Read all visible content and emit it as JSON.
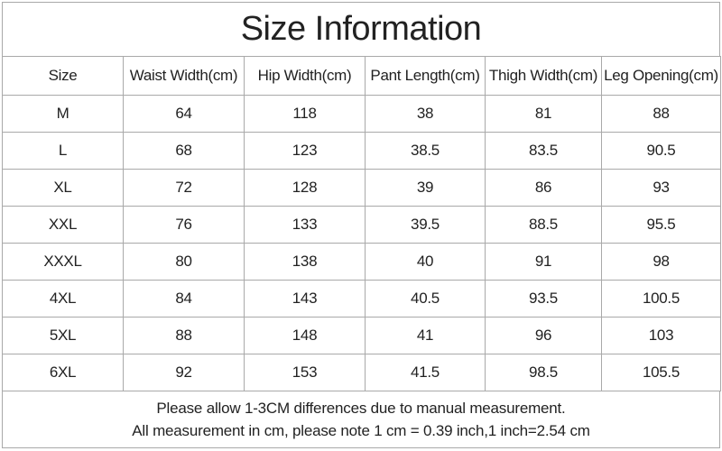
{
  "title": "Size Information",
  "table": {
    "header": [
      "Size",
      "Waist Width(cm)",
      "Hip Width(cm)",
      "Pant Length(cm)",
      "Thigh Width(cm)",
      "Leg Opening(cm)"
    ],
    "rows": [
      [
        "M",
        64,
        118,
        38,
        81,
        88
      ],
      [
        "L",
        68,
        123,
        38.5,
        83.5,
        90.5
      ],
      [
        "XL",
        72,
        128,
        39,
        86,
        93
      ],
      [
        "XXL",
        76,
        133,
        39.5,
        88.5,
        95.5
      ],
      [
        "XXXL",
        80,
        138,
        40,
        91,
        98
      ],
      [
        "4XL",
        84,
        143,
        40.5,
        93.5,
        100.5
      ],
      [
        "5XL",
        88,
        148,
        41,
        96,
        103
      ],
      [
        "6XL",
        92,
        153,
        41.5,
        98.5,
        105.5
      ]
    ]
  },
  "footer": [
    "Please allow 1-3CM differences due to manual measurement.",
    "All measurement in cm, please note 1 cm = 0.39 inch,1 inch=2.54 cm"
  ]
}
